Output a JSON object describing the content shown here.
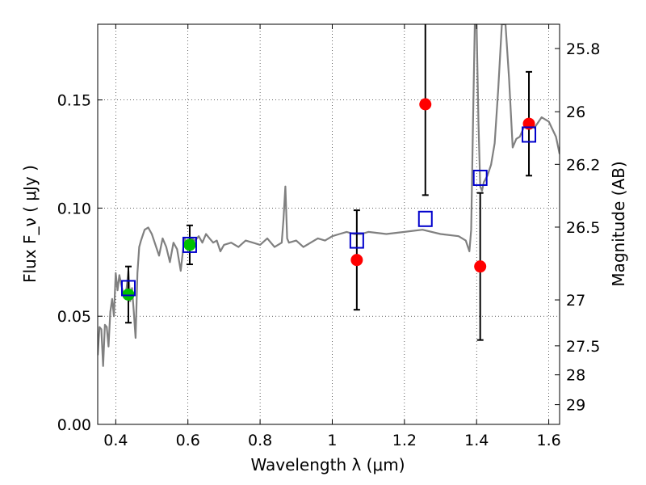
{
  "chart_data": {
    "type": "scatter",
    "title": "",
    "xlabel": "Wavelength  λ (μm)",
    "ylabel": "Flux  F_ν  ( μJy )",
    "y2label": "Magnitude (AB)",
    "xlim": [
      0.35,
      1.63
    ],
    "ylim": [
      0.0,
      0.185
    ],
    "grid": true,
    "x_ticks": [
      {
        "v": 0.4,
        "label": "0.4"
      },
      {
        "v": 0.6,
        "label": "0.6"
      },
      {
        "v": 0.8,
        "label": "0.8"
      },
      {
        "v": 1.0,
        "label": "1"
      },
      {
        "v": 1.2,
        "label": "1.2"
      },
      {
        "v": 1.4,
        "label": "1.4"
      },
      {
        "v": 1.6,
        "label": "1.6"
      }
    ],
    "y_ticks": [
      {
        "v": 0.0,
        "label": "0.00"
      },
      {
        "v": 0.05,
        "label": "0.05"
      },
      {
        "v": 0.1,
        "label": "0.10"
      },
      {
        "v": 0.15,
        "label": "0.15"
      }
    ],
    "mag_ticks": [
      {
        "mag": 25.8,
        "label": "25.8"
      },
      {
        "mag": 26.0,
        "label": "26"
      },
      {
        "mag": 26.2,
        "label": "26.2"
      },
      {
        "mag": 26.5,
        "label": "26.5"
      },
      {
        "mag": 27.0,
        "label": "27"
      },
      {
        "mag": 27.5,
        "label": "27.5"
      },
      {
        "mag": 28.0,
        "label": "28"
      },
      {
        "mag": 29.0,
        "label": "29"
      }
    ],
    "template_spectrum": {
      "color": "#808080",
      "x": [
        0.35,
        0.355,
        0.36,
        0.365,
        0.37,
        0.375,
        0.38,
        0.385,
        0.39,
        0.395,
        0.4,
        0.405,
        0.41,
        0.415,
        0.42,
        0.425,
        0.43,
        0.435,
        0.44,
        0.445,
        0.45,
        0.455,
        0.46,
        0.465,
        0.47,
        0.48,
        0.49,
        0.5,
        0.51,
        0.52,
        0.53,
        0.54,
        0.55,
        0.56,
        0.57,
        0.58,
        0.59,
        0.6,
        0.61,
        0.62,
        0.63,
        0.64,
        0.65,
        0.66,
        0.67,
        0.68,
        0.69,
        0.7,
        0.72,
        0.74,
        0.76,
        0.78,
        0.8,
        0.82,
        0.84,
        0.86,
        0.865,
        0.87,
        0.875,
        0.88,
        0.9,
        0.92,
        0.94,
        0.96,
        0.98,
        1.0,
        1.02,
        1.04,
        1.06,
        1.08,
        1.1,
        1.15,
        1.2,
        1.25,
        1.3,
        1.35,
        1.37,
        1.38,
        1.385,
        1.39,
        1.395,
        1.4,
        1.405,
        1.41,
        1.415,
        1.42,
        1.43,
        1.44,
        1.45,
        1.46,
        1.47,
        1.48,
        1.49,
        1.5,
        1.51,
        1.52,
        1.53,
        1.54,
        1.55,
        1.56,
        1.58,
        1.6,
        1.62,
        1.63
      ],
      "y": [
        0.032,
        0.045,
        0.044,
        0.027,
        0.046,
        0.045,
        0.036,
        0.052,
        0.058,
        0.05,
        0.07,
        0.062,
        0.069,
        0.065,
        0.061,
        0.06,
        0.063,
        0.071,
        0.057,
        0.063,
        0.052,
        0.04,
        0.07,
        0.082,
        0.085,
        0.09,
        0.091,
        0.088,
        0.083,
        0.078,
        0.086,
        0.082,
        0.075,
        0.084,
        0.081,
        0.071,
        0.086,
        0.083,
        0.086,
        0.085,
        0.087,
        0.084,
        0.088,
        0.086,
        0.084,
        0.085,
        0.08,
        0.083,
        0.084,
        0.082,
        0.085,
        0.084,
        0.083,
        0.086,
        0.082,
        0.084,
        0.095,
        0.11,
        0.086,
        0.084,
        0.085,
        0.082,
        0.084,
        0.086,
        0.085,
        0.087,
        0.088,
        0.089,
        0.088,
        0.088,
        0.089,
        0.088,
        0.089,
        0.09,
        0.088,
        0.087,
        0.085,
        0.08,
        0.09,
        0.14,
        0.185,
        0.185,
        0.14,
        0.11,
        0.108,
        0.112,
        0.115,
        0.12,
        0.13,
        0.155,
        0.185,
        0.185,
        0.16,
        0.128,
        0.132,
        0.133,
        0.137,
        0.139,
        0.14,
        0.137,
        0.142,
        0.14,
        0.133,
        0.125
      ]
    },
    "series": [
      {
        "marker": "filled-circle",
        "color": "#00c000",
        "points": [
          {
            "x": 0.435,
            "y": 0.06,
            "err": 0.013
          },
          {
            "x": 0.605,
            "y": 0.083,
            "err": 0.009
          }
        ]
      },
      {
        "marker": "filled-circle",
        "color": "#ff0000",
        "points": [
          {
            "x": 1.068,
            "y": 0.076,
            "err": 0.023
          },
          {
            "x": 1.258,
            "y": 0.148,
            "err": 0.042
          },
          {
            "x": 1.41,
            "y": 0.073,
            "err": 0.034
          },
          {
            "x": 1.545,
            "y": 0.139,
            "err": 0.024
          }
        ]
      },
      {
        "marker": "open-square",
        "color": "#0000cc",
        "points": [
          {
            "x": 0.435,
            "y": 0.063
          },
          {
            "x": 0.605,
            "y": 0.083
          },
          {
            "x": 1.068,
            "y": 0.085
          },
          {
            "x": 1.258,
            "y": 0.095
          },
          {
            "x": 1.41,
            "y": 0.114
          },
          {
            "x": 1.545,
            "y": 0.134
          }
        ]
      }
    ]
  }
}
